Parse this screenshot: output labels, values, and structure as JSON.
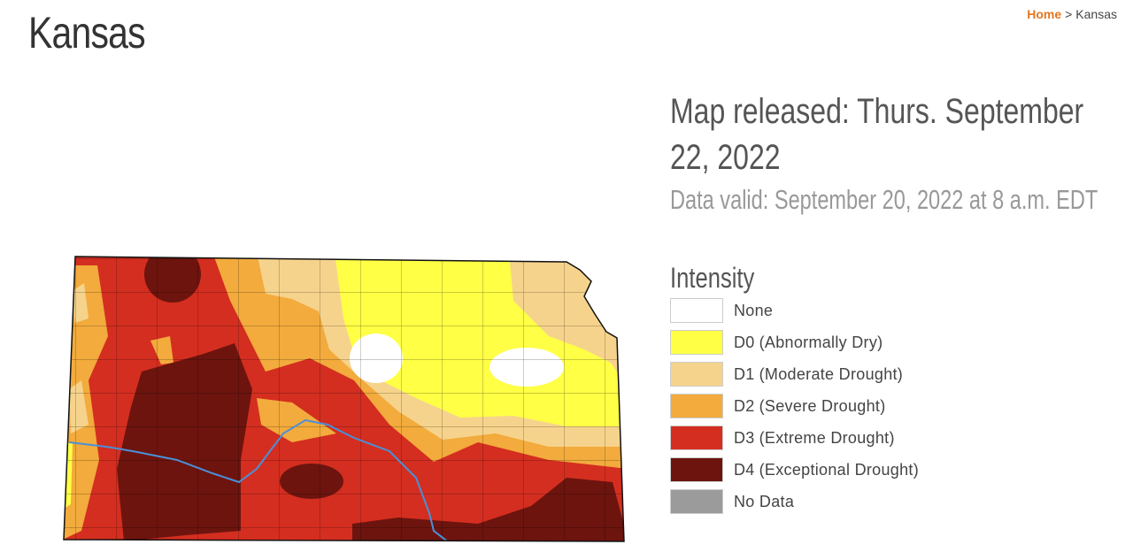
{
  "breadcrumb": {
    "home": "Home",
    "separator": ">",
    "current": "Kansas"
  },
  "header": {
    "title": "Kansas"
  },
  "release": {
    "released": "Map released: Thurs. September 22, 2022",
    "valid": "Data valid: September 20, 2022 at 8 a.m. EDT"
  },
  "legend": {
    "title": "Intensity",
    "items": [
      {
        "code": "None",
        "color": "#ffffff"
      },
      {
        "code": "D0",
        "description": "(Abnormally Dry)",
        "color": "#ffff45"
      },
      {
        "code": "D1",
        "description": "(Moderate Drought)",
        "color": "#f6d38c"
      },
      {
        "code": "D2",
        "description": "(Severe Drought)",
        "color": "#f2ab3c"
      },
      {
        "code": "D3",
        "description": "(Extreme Drought)",
        "color": "#d42e20"
      },
      {
        "code": "D4",
        "description": "(Exceptional Drought)",
        "color": "#6d140e"
      },
      {
        "code": "No Data",
        "color": "#9b9b9b"
      }
    ]
  }
}
